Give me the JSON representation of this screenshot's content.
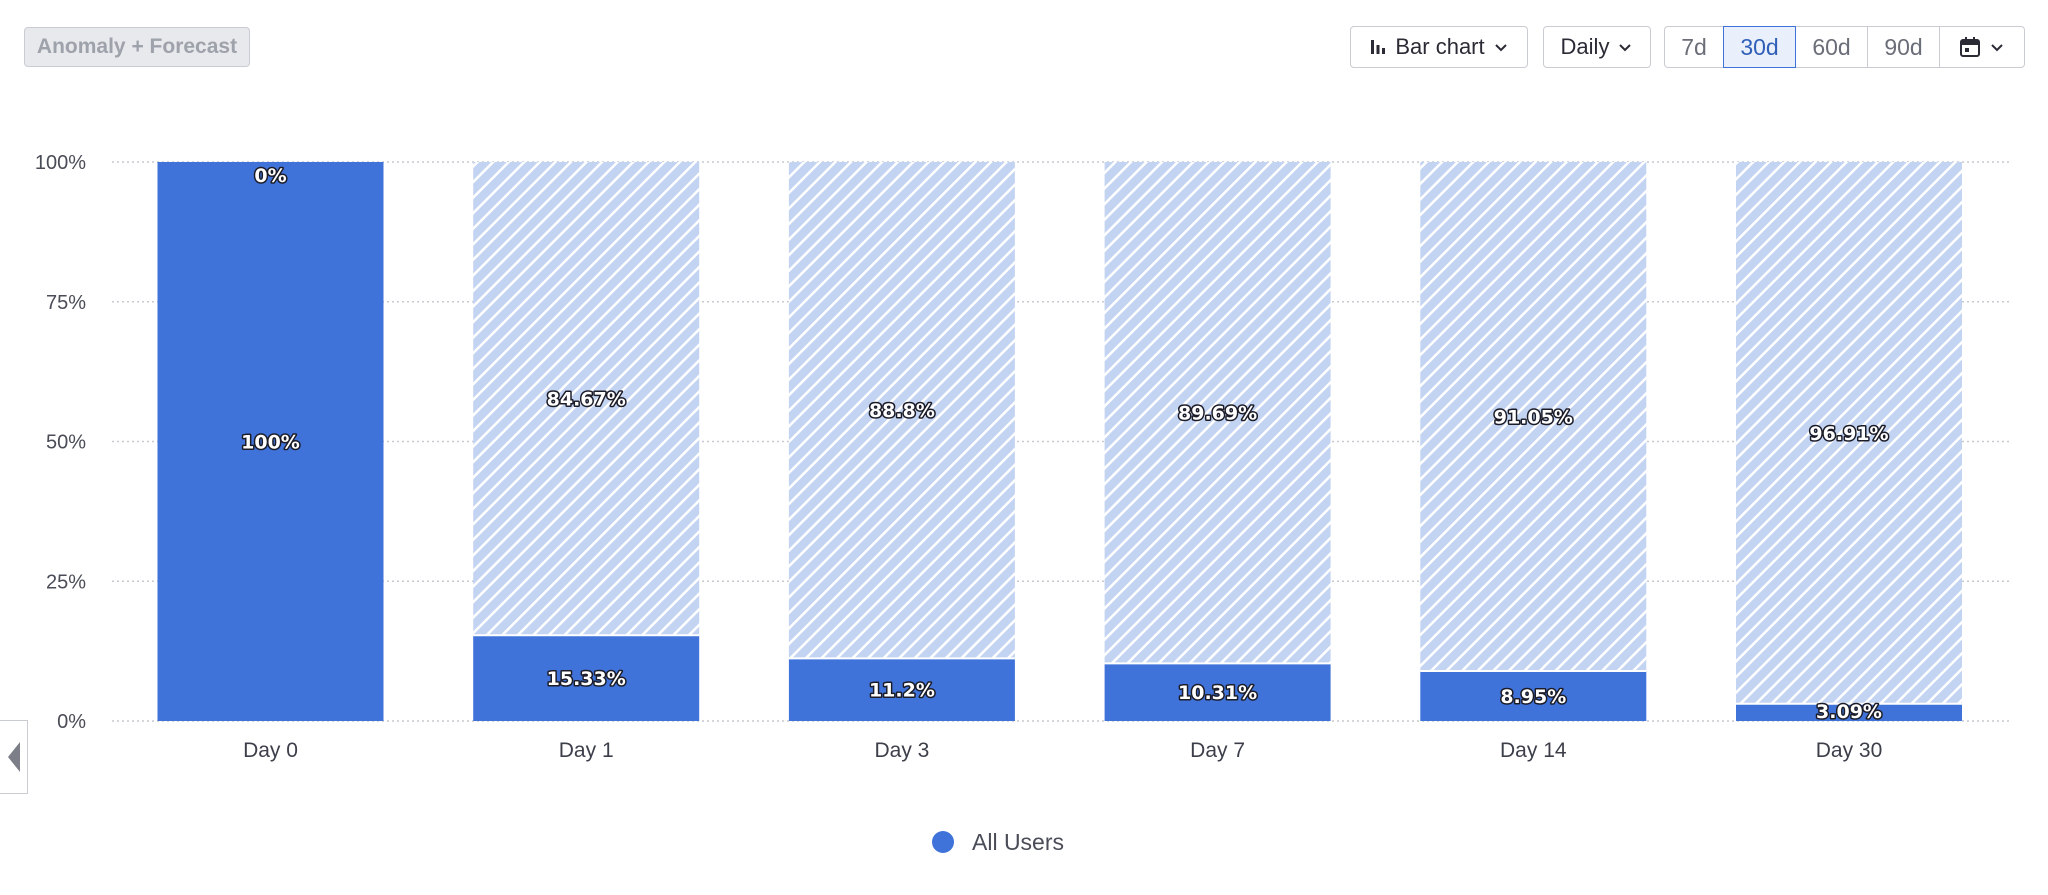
{
  "toolbar": {
    "anomaly_label": "Anomaly + Forecast",
    "chart_type_label": "Bar chart",
    "interval_label": "Daily",
    "ranges": [
      "7d",
      "30d",
      "60d",
      "90d"
    ],
    "active_range": "30d"
  },
  "colors": {
    "retained": "#3f73d9",
    "dropped": "#c3d4f2",
    "hatch": "#ffffff",
    "grid": "#c7c9cf"
  },
  "icons": {
    "chart_type": "bar-chart-icon",
    "dropdown": "chevron-down-icon",
    "calendar": "calendar-icon",
    "collapse": "caret-left-icon",
    "legend": "circle-icon"
  },
  "chart_data": {
    "type": "bar",
    "stacked": true,
    "categories": [
      "Day 0",
      "Day 1",
      "Day 3",
      "Day 7",
      "Day 14",
      "Day 30"
    ],
    "series": [
      {
        "name": "All Users",
        "values": [
          100,
          15.33,
          11.2,
          10.31,
          8.95,
          3.09
        ]
      },
      {
        "values": [
          0,
          84.67,
          88.8,
          89.69,
          91.05,
          96.91
        ]
      }
    ],
    "data_labels": {
      "retained": [
        "100%",
        "15.33%",
        "11.2%",
        "10.31%",
        "8.95%",
        "3.09%"
      ],
      "dropped": [
        "0%",
        "84.67%",
        "88.8%",
        "89.69%",
        "91.05%",
        "96.91%"
      ]
    },
    "y_ticks": [
      {
        "value": 0,
        "label": "0%"
      },
      {
        "value": 25,
        "label": "25%"
      },
      {
        "value": 50,
        "label": "50%"
      },
      {
        "value": 75,
        "label": "75%"
      },
      {
        "value": 100,
        "label": "100%"
      }
    ],
    "ylim": [
      0,
      100
    ],
    "grid": true,
    "legend": {
      "position": "bottom-center",
      "entries": [
        "All Users"
      ]
    }
  }
}
